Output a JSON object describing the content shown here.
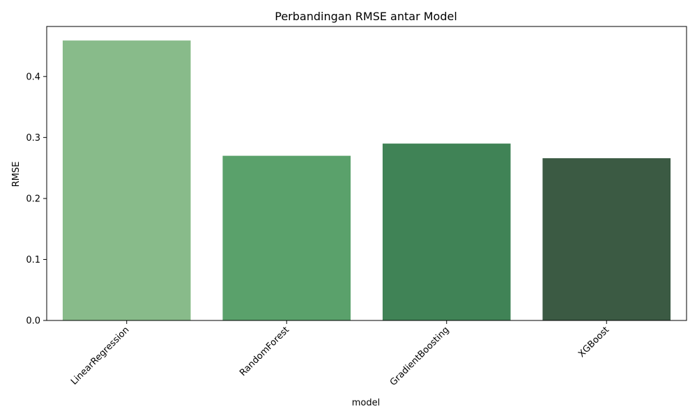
{
  "chart_data": {
    "type": "bar",
    "title": "Perbandingan RMSE antar Model",
    "xlabel": "model",
    "ylabel": "RMSE",
    "categories": [
      "LinearRegression",
      "RandomForest",
      "GradientBoosting",
      "XGBoost"
    ],
    "values": [
      0.459,
      0.27,
      0.29,
      0.266
    ],
    "colors": [
      "#88bb8a",
      "#5aa16b",
      "#408356",
      "#3b5a43"
    ],
    "yticks": [
      "0.0",
      "0.1",
      "0.2",
      "0.3",
      "0.4"
    ],
    "ylim": [
      0,
      0.482
    ],
    "grid": false,
    "xtick_rotation_deg": 45
  }
}
